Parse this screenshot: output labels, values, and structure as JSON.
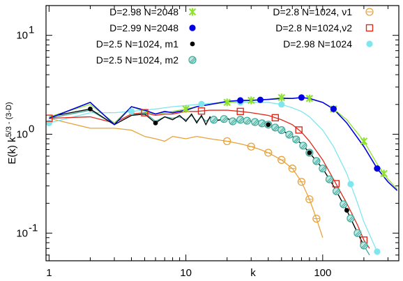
{
  "chart_data": {
    "type": "line",
    "x_scale": "log",
    "y_scale": "log",
    "xlim": [
      0.95,
      360
    ],
    "ylim": [
      0.0525,
      20
    ],
    "xlabel": "k",
    "ylabel": "E(k) k^{5/3 - (3-D)}",
    "ylabel_parts": {
      "base": "E(k) k",
      "exponent": "5/3 - (3-D)"
    },
    "x_ticks": [
      {
        "value": 1,
        "label": "1"
      },
      {
        "value": 10,
        "label": "10"
      },
      {
        "value": 100,
        "label": "100"
      }
    ],
    "y_ticks": [
      {
        "value": 0.1,
        "label": "10",
        "exp": "-1"
      },
      {
        "value": 1,
        "label": "10",
        "exp": "0"
      },
      {
        "value": 10,
        "label": "10",
        "exp": "1"
      }
    ],
    "grid": false,
    "legend_position": "top",
    "series": [
      {
        "name": "D=2.98 N=2048",
        "color": "#8fe32f",
        "marker": "star",
        "x": [
          1,
          2,
          3,
          4,
          5,
          6,
          7,
          8,
          10,
          12,
          15,
          20,
          25,
          30,
          40,
          50,
          60,
          70,
          80,
          100,
          120,
          150,
          200,
          250,
          300,
          350
        ],
        "y": [
          1.5,
          2.0,
          1.3,
          1.9,
          1.7,
          1.6,
          1.65,
          1.7,
          1.8,
          1.9,
          2.0,
          2.1,
          2.15,
          2.2,
          2.25,
          2.35,
          2.3,
          2.35,
          2.3,
          2.1,
          1.8,
          1.4,
          0.85,
          0.5,
          0.35,
          0.28
        ],
        "markers_at": [
          10,
          20,
          30,
          50,
          80,
          120,
          200,
          280
        ]
      },
      {
        "name": "D=2.99 N=2048",
        "color": "#0000e0",
        "marker": "circle-filled",
        "x": [
          1,
          2,
          3,
          4,
          5,
          6,
          7,
          8,
          10,
          12,
          15,
          20,
          25,
          30,
          40,
          50,
          60,
          70,
          80,
          100,
          120,
          150,
          200,
          250,
          300,
          350
        ],
        "y": [
          1.45,
          2.1,
          1.25,
          1.9,
          1.75,
          1.6,
          1.7,
          1.65,
          1.75,
          1.9,
          2.0,
          2.15,
          2.2,
          2.2,
          2.25,
          2.3,
          2.3,
          2.35,
          2.3,
          2.1,
          1.8,
          1.3,
          0.75,
          0.45,
          0.33,
          0.27
        ],
        "markers_at": [
          25,
          35,
          70,
          120,
          250
        ]
      },
      {
        "name": "D=2.5 N=1024, m1",
        "color": "#000000",
        "marker": "circle-filled-small",
        "x": [
          1,
          2,
          3,
          4,
          5,
          6,
          7,
          8,
          9,
          10,
          11,
          12,
          13,
          14,
          15,
          16,
          18,
          20,
          22,
          25,
          30,
          35,
          40,
          50,
          60,
          70,
          80,
          100,
          120,
          150,
          180,
          200
        ],
        "y": [
          1.5,
          1.8,
          1.25,
          1.55,
          1.6,
          1.3,
          1.5,
          1.4,
          1.55,
          1.35,
          1.6,
          1.3,
          1.55,
          1.25,
          1.5,
          1.35,
          1.4,
          1.45,
          1.35,
          1.4,
          1.35,
          1.3,
          1.25,
          1.1,
          0.95,
          0.8,
          0.65,
          0.45,
          0.3,
          0.17,
          0.1,
          0.075
        ],
        "markers_at": [
          2,
          6,
          40,
          80,
          150
        ]
      },
      {
        "name": "D=2.5 N=1024, m2",
        "color": "#3fa89a",
        "marker": "circle-hatched",
        "x": [
          1,
          2,
          3,
          4,
          5,
          6,
          7,
          8,
          9,
          10,
          11,
          12,
          13,
          14,
          15,
          16,
          18,
          20,
          22,
          25,
          30,
          35,
          40,
          50,
          60,
          70,
          80,
          100,
          120,
          150,
          180,
          200,
          220
        ],
        "y": [
          1.45,
          1.75,
          1.25,
          1.55,
          1.65,
          1.35,
          1.5,
          1.45,
          1.5,
          1.4,
          1.55,
          1.35,
          1.5,
          1.35,
          1.45,
          1.4,
          1.4,
          1.45,
          1.35,
          1.4,
          1.35,
          1.3,
          1.25,
          1.1,
          0.95,
          0.8,
          0.65,
          0.45,
          0.3,
          0.17,
          0.1,
          0.075,
          0.06
        ],
        "markers_at": [
          16,
          19,
          22,
          25,
          28,
          32,
          36,
          40,
          45,
          50,
          57,
          64,
          72,
          80,
          90,
          100,
          112,
          126,
          142,
          160,
          180,
          200
        ]
      },
      {
        "name": "D=2.8 N=1024, ν1",
        "color": "#e8a23c",
        "marker": "circle-open-cross",
        "x": [
          1,
          2,
          3,
          4,
          5,
          6,
          7,
          8,
          10,
          12,
          15,
          20,
          25,
          30,
          35,
          40,
          50,
          60,
          70,
          80,
          90,
          100
        ],
        "y": [
          1.45,
          1.15,
          1.15,
          1.1,
          0.95,
          0.9,
          0.85,
          0.95,
          0.9,
          0.95,
          0.9,
          0.85,
          0.8,
          0.75,
          0.7,
          0.65,
          0.55,
          0.45,
          0.33,
          0.22,
          0.14,
          0.09
        ],
        "markers_at": [
          20,
          30,
          40,
          50,
          60,
          70,
          80,
          90
        ]
      },
      {
        "name": "D=2.8 N=1024,ν2",
        "color": "#e0281a",
        "marker": "square-open",
        "x": [
          1,
          2,
          3,
          4,
          5,
          6,
          7,
          8,
          10,
          12,
          15,
          20,
          25,
          30,
          40,
          50,
          60,
          70,
          80,
          100,
          120,
          150,
          180,
          200,
          220
        ],
        "y": [
          1.45,
          1.5,
          1.3,
          1.6,
          1.65,
          1.55,
          1.6,
          1.6,
          1.7,
          1.7,
          1.75,
          1.75,
          1.7,
          1.65,
          1.55,
          1.4,
          1.25,
          1.05,
          0.85,
          0.55,
          0.35,
          0.2,
          0.12,
          0.085,
          0.07
        ],
        "markers_at": [
          1,
          5,
          13,
          25,
          45,
          67,
          125,
          200
        ]
      },
      {
        "name": "D=2.98 N=1024",
        "color": "#7fe6ee",
        "marker": "circle-filled-light",
        "x": [
          1,
          2,
          3,
          4,
          5,
          6,
          7,
          8,
          10,
          12,
          15,
          20,
          25,
          30,
          40,
          50,
          60,
          70,
          80,
          100,
          120,
          150,
          180,
          200,
          250
        ],
        "y": [
          1.3,
          1.65,
          1.65,
          1.7,
          1.75,
          1.8,
          1.85,
          1.9,
          1.95,
          2.0,
          2.05,
          2.1,
          2.1,
          2.1,
          2.1,
          2.0,
          1.85,
          1.7,
          1.5,
          1.1,
          0.75,
          0.4,
          0.2,
          0.13,
          0.065
        ],
        "markers_at": [
          1,
          4,
          13,
          25,
          50,
          160,
          250
        ]
      }
    ],
    "legend_layout": [
      [
        "D=2.98 N=2048",
        "D=2.8 N=1024, ν1"
      ],
      [
        "D=2.99 N=2048",
        "D=2.8 N=1024,ν2"
      ],
      [
        "D=2.5 N=1024, m1",
        "D=2.98 N=1024"
      ],
      [
        "D=2.5 N=1024, m2",
        ""
      ]
    ]
  }
}
